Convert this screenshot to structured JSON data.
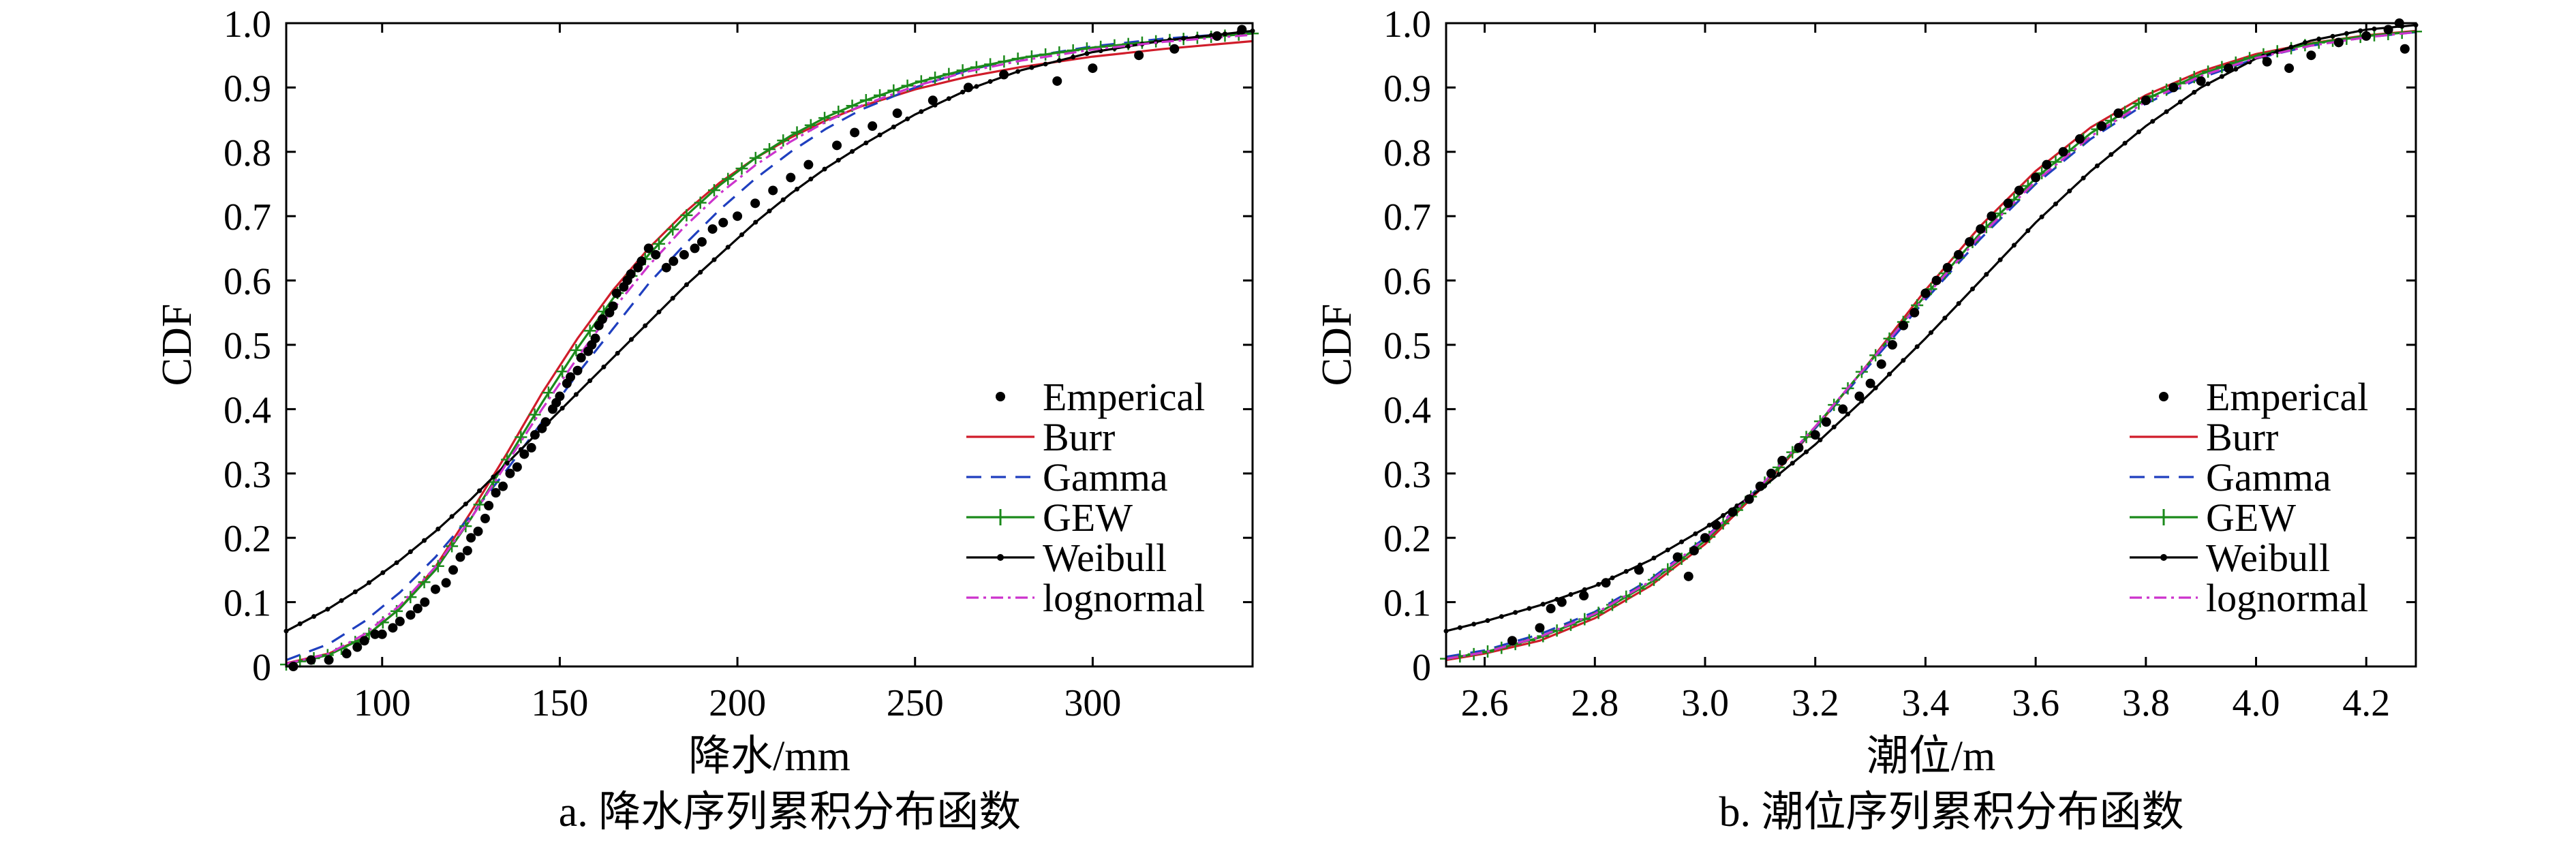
{
  "chart_data": [
    {
      "type": "line",
      "caption": "a. 降水序列累积分布函数",
      "xlabel": "降水/mm",
      "ylabel": "CDF",
      "xlim": [
        73,
        345
      ],
      "ylim": [
        0,
        1
      ],
      "xticks": [
        100,
        150,
        200,
        250,
        300
      ],
      "yticks": [
        0,
        0.1,
        0.2,
        0.3,
        0.4,
        0.5,
        0.6,
        0.7,
        0.8,
        0.9,
        1.0
      ],
      "ytick_labels": [
        "0",
        "0.1",
        "0.2",
        "0.3",
        "0.4",
        "0.5",
        "0.6",
        "0.7",
        "0.8",
        "0.9",
        "1.0"
      ],
      "legend_position": "lower-right",
      "legend": [
        "Emperical",
        "Burr",
        "Gamma",
        "GEW",
        "Weibull",
        "lognormal"
      ],
      "empirical": {
        "x": [
          75,
          80,
          85,
          90,
          93,
          95,
          98,
          100,
          103,
          105,
          108,
          110,
          112,
          115,
          118,
          120,
          122,
          124,
          125,
          127,
          129,
          130,
          132,
          134,
          136,
          138,
          140,
          142,
          143,
          145,
          146,
          148,
          149,
          150,
          152,
          153,
          155,
          156,
          158,
          159,
          160,
          161,
          162,
          164,
          165,
          166,
          168,
          169,
          170,
          172,
          173,
          175,
          177,
          180,
          182,
          185,
          188,
          190,
          193,
          196,
          200,
          205,
          210,
          215,
          220,
          228,
          233,
          238,
          245,
          255,
          265,
          275,
          290,
          300,
          313,
          323,
          335,
          342
        ],
        "y": [
          0.0,
          0.01,
          0.01,
          0.02,
          0.03,
          0.04,
          0.05,
          0.05,
          0.06,
          0.07,
          0.08,
          0.09,
          0.1,
          0.12,
          0.13,
          0.15,
          0.17,
          0.18,
          0.2,
          0.21,
          0.23,
          0.25,
          0.27,
          0.28,
          0.3,
          0.31,
          0.33,
          0.34,
          0.36,
          0.37,
          0.38,
          0.4,
          0.41,
          0.42,
          0.44,
          0.45,
          0.46,
          0.48,
          0.49,
          0.5,
          0.51,
          0.53,
          0.54,
          0.55,
          0.56,
          0.58,
          0.59,
          0.6,
          0.61,
          0.62,
          0.63,
          0.65,
          0.64,
          0.62,
          0.63,
          0.64,
          0.65,
          0.66,
          0.68,
          0.69,
          0.7,
          0.72,
          0.74,
          0.76,
          0.78,
          0.81,
          0.83,
          0.84,
          0.86,
          0.88,
          0.9,
          0.92,
          0.91,
          0.93,
          0.95,
          0.96,
          0.98,
          0.99
        ]
      },
      "series": [
        {
          "name": "Burr",
          "color": "#d01c2a",
          "dash": "none",
          "marker": "none",
          "x": [
            73,
            85,
            95,
            105,
            115,
            125,
            135,
            145,
            155,
            165,
            175,
            185,
            195,
            205,
            215,
            225,
            235,
            250,
            265,
            280,
            300,
            320,
            345
          ],
          "y": [
            0.005,
            0.02,
            0.045,
            0.09,
            0.155,
            0.24,
            0.33,
            0.425,
            0.51,
            0.585,
            0.65,
            0.705,
            0.752,
            0.79,
            0.822,
            0.849,
            0.871,
            0.897,
            0.917,
            0.932,
            0.948,
            0.96,
            0.972
          ]
        },
        {
          "name": "Gamma",
          "color": "#1f3fbf",
          "dash": "22,14",
          "marker": "none",
          "x": [
            73,
            85,
            95,
            105,
            115,
            125,
            135,
            145,
            155,
            165,
            175,
            185,
            195,
            205,
            215,
            225,
            235,
            250,
            265,
            280,
            300,
            320,
            345
          ],
          "y": [
            0.01,
            0.035,
            0.07,
            0.115,
            0.17,
            0.235,
            0.305,
            0.38,
            0.455,
            0.525,
            0.595,
            0.655,
            0.71,
            0.758,
            0.8,
            0.836,
            0.866,
            0.9,
            0.927,
            0.946,
            0.964,
            0.976,
            0.986
          ]
        },
        {
          "name": "GEW",
          "color": "#1b8a1b",
          "dash": "none",
          "marker": "plus",
          "x": [
            73,
            85,
            95,
            105,
            115,
            125,
            135,
            145,
            155,
            165,
            175,
            185,
            195,
            205,
            215,
            225,
            235,
            250,
            265,
            280,
            300,
            320,
            345
          ],
          "y": [
            0.003,
            0.018,
            0.045,
            0.09,
            0.15,
            0.23,
            0.32,
            0.41,
            0.495,
            0.572,
            0.64,
            0.698,
            0.748,
            0.79,
            0.825,
            0.854,
            0.878,
            0.907,
            0.929,
            0.946,
            0.962,
            0.973,
            0.984
          ]
        },
        {
          "name": "Weibull",
          "color": "#000000",
          "dash": "none",
          "marker": "dot",
          "x": [
            73,
            85,
            95,
            105,
            115,
            125,
            135,
            145,
            155,
            165,
            175,
            185,
            195,
            205,
            215,
            225,
            235,
            250,
            265,
            280,
            300,
            320,
            345
          ],
          "y": [
            0.055,
            0.09,
            0.125,
            0.165,
            0.21,
            0.26,
            0.315,
            0.37,
            0.425,
            0.48,
            0.535,
            0.59,
            0.64,
            0.69,
            0.735,
            0.775,
            0.81,
            0.858,
            0.897,
            0.927,
            0.955,
            0.973,
            0.988
          ]
        },
        {
          "name": "lognormal",
          "color": "#cc33cc",
          "dash": "18,7,4,7",
          "marker": "none",
          "x": [
            73,
            85,
            95,
            105,
            115,
            125,
            135,
            145,
            155,
            165,
            175,
            185,
            195,
            205,
            215,
            225,
            235,
            250,
            265,
            280,
            300,
            320,
            345
          ],
          "y": [
            0.004,
            0.02,
            0.05,
            0.095,
            0.155,
            0.23,
            0.315,
            0.4,
            0.48,
            0.555,
            0.623,
            0.683,
            0.735,
            0.779,
            0.816,
            0.847,
            0.872,
            0.902,
            0.925,
            0.942,
            0.959,
            0.971,
            0.982
          ]
        }
      ]
    },
    {
      "type": "line",
      "caption": "b. 潮位序列累积分布函数",
      "xlabel": "潮位/m",
      "ylabel": "CDF",
      "xlim": [
        2.53,
        4.29
      ],
      "ylim": [
        0,
        1
      ],
      "xticks": [
        2.6,
        2.8,
        3.0,
        3.2,
        3.4,
        3.6,
        3.8,
        4.0,
        4.2
      ],
      "xtick_labels": [
        "2.6",
        "2.8",
        "3.0",
        "3.2",
        "3.4",
        "3.6",
        "3.8",
        "4.0",
        "4.2"
      ],
      "yticks": [
        0,
        0.1,
        0.2,
        0.3,
        0.4,
        0.5,
        0.6,
        0.7,
        0.8,
        0.9,
        1.0
      ],
      "ytick_labels": [
        "0",
        "0.1",
        "0.2",
        "0.3",
        "0.4",
        "0.5",
        "0.6",
        "0.7",
        "0.8",
        "0.9",
        "1.0"
      ],
      "legend_position": "lower-right",
      "legend": [
        "Emperical",
        "Burr",
        "Gamma",
        "GEW",
        "Weibull",
        "lognormal"
      ],
      "empirical": {
        "x": [
          2.65,
          2.7,
          2.72,
          2.74,
          2.78,
          2.82,
          2.88,
          2.95,
          2.97,
          2.98,
          3.0,
          3.02,
          3.05,
          3.08,
          3.1,
          3.12,
          3.14,
          3.17,
          3.2,
          3.22,
          3.25,
          3.28,
          3.3,
          3.32,
          3.34,
          3.36,
          3.38,
          3.4,
          3.42,
          3.44,
          3.46,
          3.48,
          3.5,
          3.52,
          3.55,
          3.57,
          3.6,
          3.62,
          3.65,
          3.68,
          3.72,
          3.75,
          3.8,
          3.85,
          3.9,
          3.95,
          4.02,
          4.06,
          4.1,
          4.15,
          4.2,
          4.24,
          4.26,
          4.27
        ],
        "y": [
          0.04,
          0.06,
          0.09,
          0.1,
          0.11,
          0.13,
          0.15,
          0.17,
          0.14,
          0.18,
          0.2,
          0.22,
          0.24,
          0.26,
          0.28,
          0.3,
          0.32,
          0.34,
          0.36,
          0.38,
          0.4,
          0.42,
          0.44,
          0.47,
          0.5,
          0.53,
          0.55,
          0.58,
          0.6,
          0.62,
          0.64,
          0.66,
          0.68,
          0.7,
          0.72,
          0.74,
          0.76,
          0.78,
          0.8,
          0.82,
          0.84,
          0.86,
          0.88,
          0.9,
          0.91,
          0.93,
          0.94,
          0.93,
          0.95,
          0.97,
          0.98,
          0.99,
          1.0,
          0.96
        ]
      },
      "series": [
        {
          "name": "Burr",
          "color": "#d01c2a",
          "dash": "none",
          "marker": "none",
          "x": [
            2.53,
            2.6,
            2.7,
            2.8,
            2.9,
            3.0,
            3.1,
            3.2,
            3.3,
            3.4,
            3.5,
            3.6,
            3.7,
            3.8,
            3.9,
            4.0,
            4.1,
            4.2,
            4.29
          ],
          "y": [
            0.01,
            0.02,
            0.04,
            0.075,
            0.125,
            0.19,
            0.275,
            0.37,
            0.475,
            0.585,
            0.685,
            0.77,
            0.838,
            0.888,
            0.925,
            0.952,
            0.969,
            0.981,
            0.988
          ]
        },
        {
          "name": "Gamma",
          "color": "#1f3fbf",
          "dash": "22,14",
          "marker": "none",
          "x": [
            2.53,
            2.6,
            2.7,
            2.8,
            2.9,
            3.0,
            3.1,
            3.2,
            3.3,
            3.4,
            3.5,
            3.6,
            3.7,
            3.8,
            3.9,
            4.0,
            4.1,
            4.2,
            4.29
          ],
          "y": [
            0.015,
            0.025,
            0.05,
            0.085,
            0.135,
            0.2,
            0.28,
            0.37,
            0.47,
            0.57,
            0.665,
            0.75,
            0.82,
            0.875,
            0.915,
            0.945,
            0.965,
            0.978,
            0.986
          ]
        },
        {
          "name": "GEW",
          "color": "#1b8a1b",
          "dash": "none",
          "marker": "plus",
          "x": [
            2.53,
            2.6,
            2.7,
            2.8,
            2.9,
            3.0,
            3.1,
            3.2,
            3.3,
            3.4,
            3.5,
            3.6,
            3.7,
            3.8,
            3.9,
            4.0,
            4.1,
            4.2,
            4.29
          ],
          "y": [
            0.012,
            0.022,
            0.045,
            0.08,
            0.13,
            0.195,
            0.278,
            0.372,
            0.474,
            0.577,
            0.674,
            0.759,
            0.829,
            0.882,
            0.921,
            0.949,
            0.968,
            0.98,
            0.987
          ]
        },
        {
          "name": "Weibull",
          "color": "#000000",
          "dash": "none",
          "marker": "dot",
          "x": [
            2.53,
            2.6,
            2.7,
            2.8,
            2.9,
            3.0,
            3.1,
            3.2,
            3.3,
            3.4,
            3.5,
            3.6,
            3.7,
            3.8,
            3.9,
            4.0,
            4.1,
            4.2,
            4.29
          ],
          "y": [
            0.055,
            0.07,
            0.095,
            0.125,
            0.165,
            0.215,
            0.275,
            0.345,
            0.425,
            0.51,
            0.6,
            0.69,
            0.77,
            0.84,
            0.9,
            0.945,
            0.973,
            0.99,
            0.997
          ]
        },
        {
          "name": "lognormal",
          "color": "#cc33cc",
          "dash": "18,7,4,7",
          "marker": "none",
          "x": [
            2.53,
            2.6,
            2.7,
            2.8,
            2.9,
            3.0,
            3.1,
            3.2,
            3.3,
            3.4,
            3.5,
            3.6,
            3.7,
            3.8,
            3.9,
            4.0,
            4.1,
            4.2,
            4.29
          ],
          "y": [
            0.012,
            0.022,
            0.046,
            0.082,
            0.132,
            0.198,
            0.28,
            0.373,
            0.474,
            0.575,
            0.67,
            0.754,
            0.824,
            0.878,
            0.918,
            0.946,
            0.965,
            0.978,
            0.986
          ]
        }
      ]
    }
  ]
}
